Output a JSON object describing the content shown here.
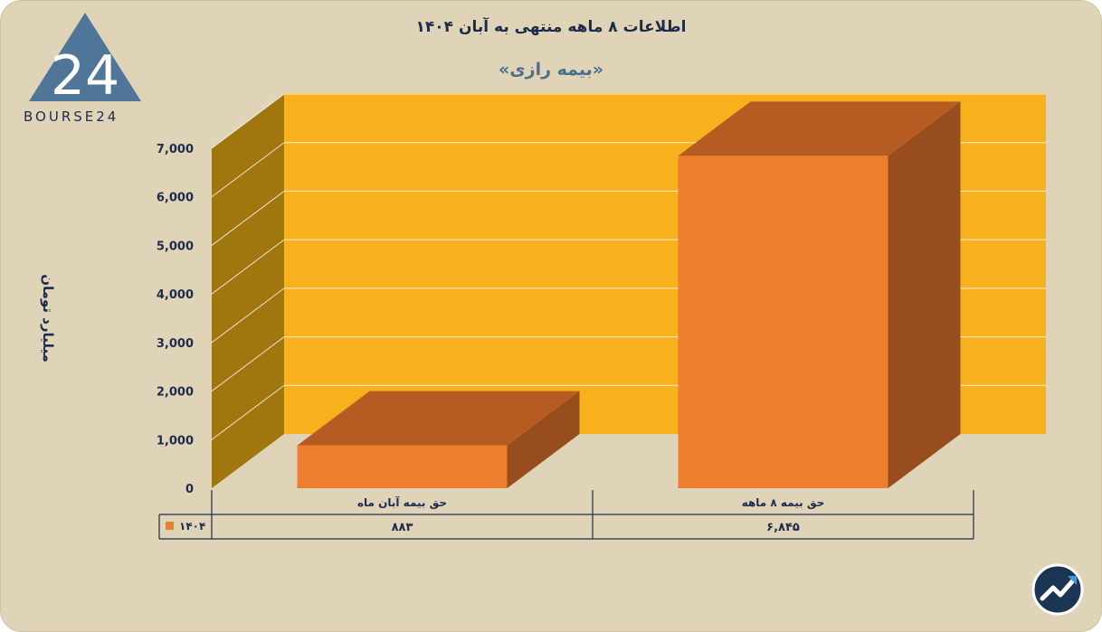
{
  "brand": {
    "name": "BOURSE24",
    "mark": "24"
  },
  "title": "اطلاعات ۸ ماهه منتهی به آبان ۱۴۰۴",
  "subtitle": "«بیمه رازی»",
  "ylabel": "میلیارد تومان",
  "colors": {
    "background": "#e0d4b8",
    "plot_back": "#f7b11c",
    "plot_side": "#a0760f",
    "bar_front": "#ec7e2e",
    "bar_top": "#b65c22",
    "bar_side": "#974d1d",
    "text": "#1d2b4c"
  },
  "chart_data": {
    "type": "bar",
    "categories": [
      "حق بیمه آبان ماه",
      "حق بیمه ۸ ماهه"
    ],
    "series": [
      {
        "name": "۱۴۰۴",
        "values": [
          883,
          6845
        ],
        "value_labels": [
          "۸۸۳",
          "۶,۸۴۵"
        ]
      }
    ],
    "ylim": [
      0,
      7000
    ],
    "yticks": [
      0,
      1000,
      2000,
      3000,
      4000,
      5000,
      6000,
      7000
    ],
    "ytick_labels": [
      "0",
      "1,000",
      "2,000",
      "3,000",
      "4,000",
      "5,000",
      "6,000",
      "7,000"
    ],
    "grid": true,
    "legend": "data-table"
  }
}
